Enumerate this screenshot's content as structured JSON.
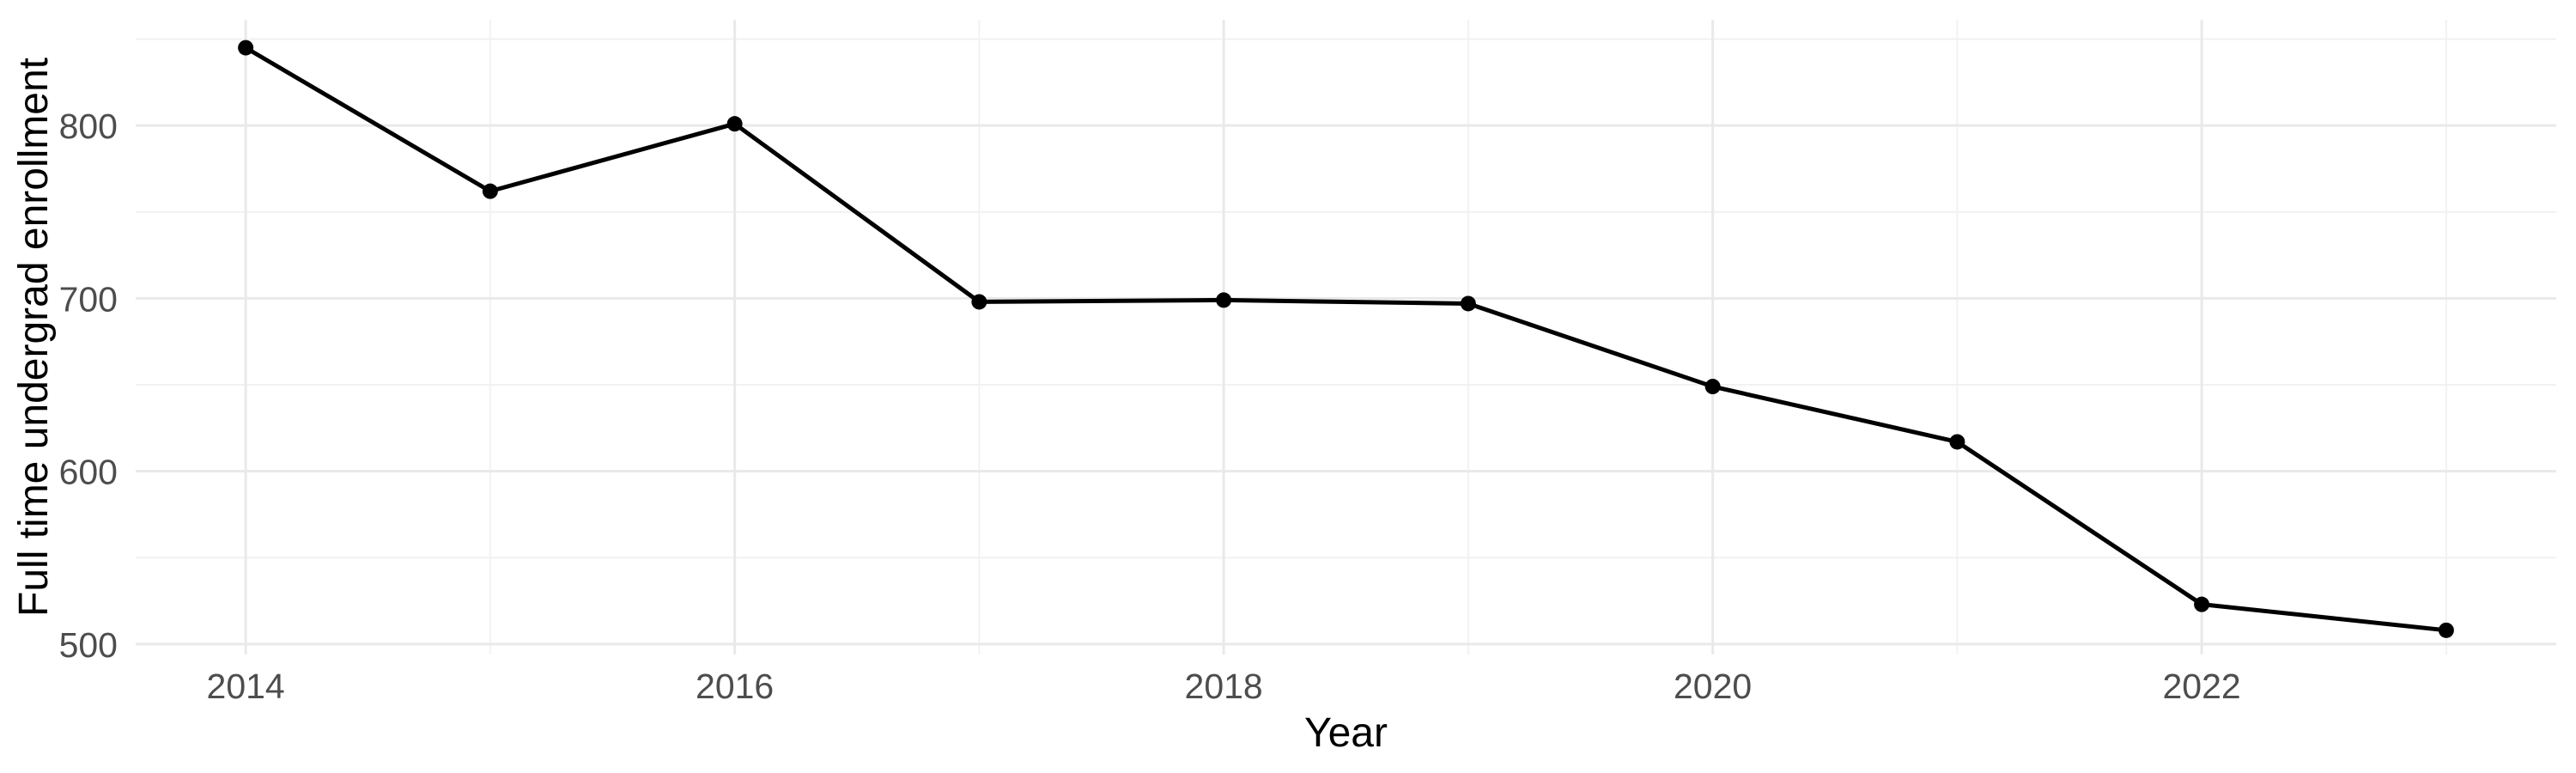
{
  "chart_data": {
    "type": "line",
    "x": [
      2014,
      2015,
      2016,
      2017,
      2018,
      2019,
      2020,
      2021,
      2022,
      2023
    ],
    "values": [
      845,
      762,
      801,
      698,
      699,
      697,
      649,
      617,
      523,
      508
    ],
    "xlabel": "Year",
    "ylabel": "Full time undergrad enrollment",
    "x_ticks": [
      2014,
      2016,
      2018,
      2020,
      2022
    ],
    "x_minor_ticks": [
      2015,
      2017,
      2019,
      2021,
      2023
    ],
    "y_ticks": [
      500,
      600,
      700,
      800
    ],
    "y_minor_ticks": [
      550,
      650,
      750,
      850
    ],
    "xlim": [
      2013.55,
      2023.45
    ],
    "ylim": [
      494,
      861.2
    ],
    "grid": true,
    "legend_position": "none",
    "line_color": "#000000",
    "point_color": "#000000",
    "major_grid_color": "#E9E9E9",
    "minor_grid_color": "#F1F1F1",
    "tick_label_color": "#4D4D4D",
    "axis_title_color": "#000000",
    "background_color": "#FFFFFF"
  }
}
